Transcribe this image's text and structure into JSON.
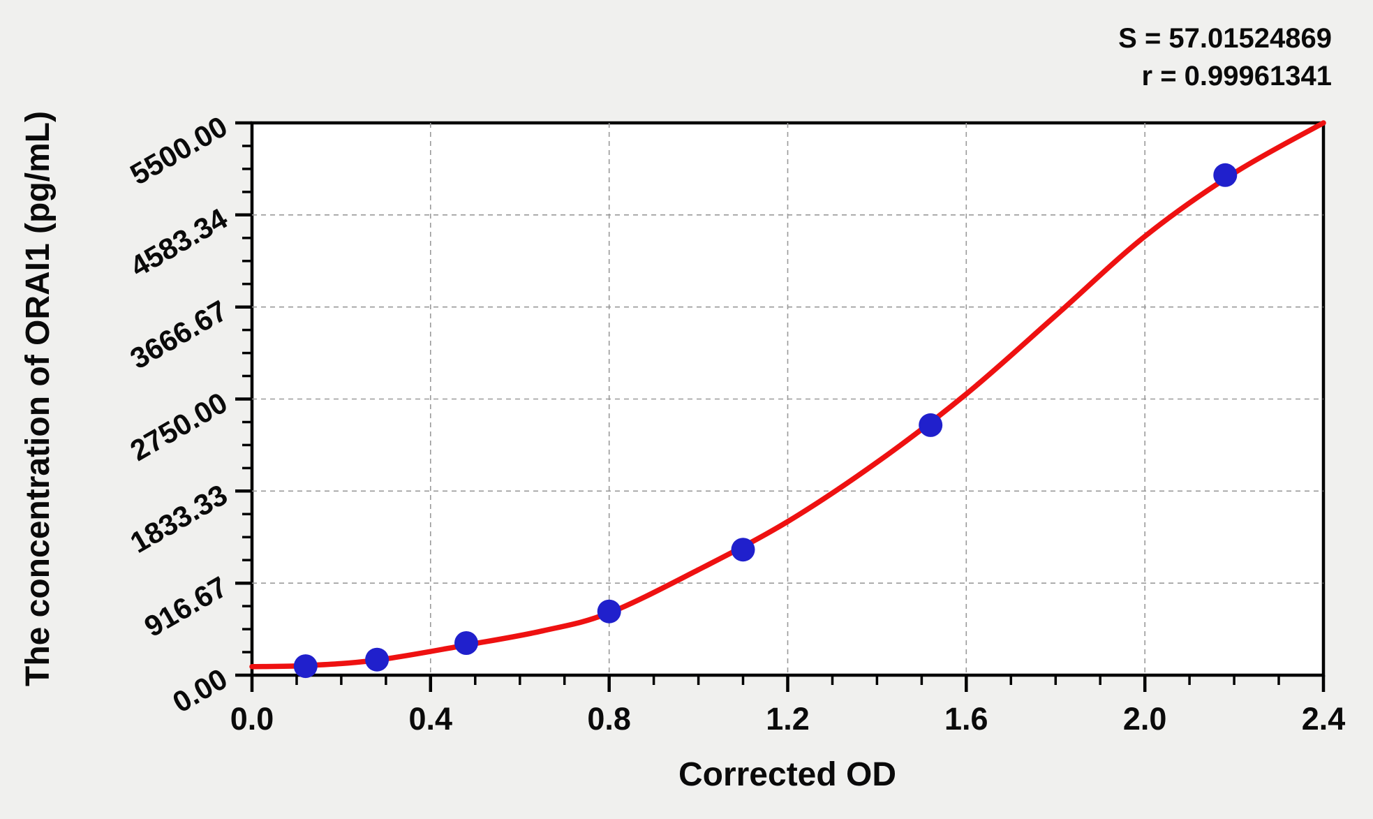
{
  "chart_data": {
    "type": "scatter",
    "title": "",
    "xlabel": "Corrected OD",
    "ylabel": "The concentration of ORAI1 (pg/mL)",
    "stats": {
      "s_label": "S = 57.01524869",
      "r_label": "r = 0.99961341"
    },
    "xlim": [
      0.0,
      2.4
    ],
    "ylim": [
      0.0,
      5500.0
    ],
    "x_major_step": 0.4,
    "x_minor_step": 0.1,
    "y_minor_divisions": 4,
    "x_tick_labels": [
      "0.0",
      "0.4",
      "0.8",
      "1.2",
      "1.6",
      "2.0",
      "2.4"
    ],
    "x_tick_values": [
      0.0,
      0.4,
      0.8,
      1.2,
      1.6,
      2.0,
      2.4
    ],
    "y_tick_labels": [
      "0.00",
      "916.67",
      "1833.33",
      "2750.00",
      "3666.67",
      "4583.34",
      "5500.00"
    ],
    "y_tick_values": [
      0.0,
      916.67,
      1833.33,
      2750.0,
      3666.67,
      4583.34,
      5500.0
    ],
    "grid": true,
    "legend": "none",
    "series": [
      {
        "name": "standards",
        "style": "scatter",
        "points": [
          {
            "x": 0.12,
            "y": 90
          },
          {
            "x": 0.28,
            "y": 155
          },
          {
            "x": 0.48,
            "y": 320
          },
          {
            "x": 0.8,
            "y": 635
          },
          {
            "x": 1.1,
            "y": 1250
          },
          {
            "x": 1.52,
            "y": 2490
          },
          {
            "x": 2.18,
            "y": 4980
          }
        ]
      },
      {
        "name": "fitted-curve",
        "style": "line",
        "points": [
          {
            "x": 0.0,
            "y": 85
          },
          {
            "x": 0.12,
            "y": 95
          },
          {
            "x": 0.28,
            "y": 150
          },
          {
            "x": 0.48,
            "y": 300
          },
          {
            "x": 0.65,
            "y": 440
          },
          {
            "x": 0.8,
            "y": 620
          },
          {
            "x": 1.0,
            "y": 1050
          },
          {
            "x": 1.2,
            "y": 1530
          },
          {
            "x": 1.4,
            "y": 2120
          },
          {
            "x": 1.6,
            "y": 2800
          },
          {
            "x": 1.8,
            "y": 3580
          },
          {
            "x": 2.0,
            "y": 4370
          },
          {
            "x": 2.2,
            "y": 5000
          },
          {
            "x": 2.4,
            "y": 5500
          }
        ]
      }
    ],
    "colors": {
      "curve": "#ee1111",
      "point": "#2020cc",
      "grid": "#9a9a9a",
      "axis": "#000000",
      "plot_background": "#ffffff",
      "page_background": "#f0f0ee"
    }
  }
}
